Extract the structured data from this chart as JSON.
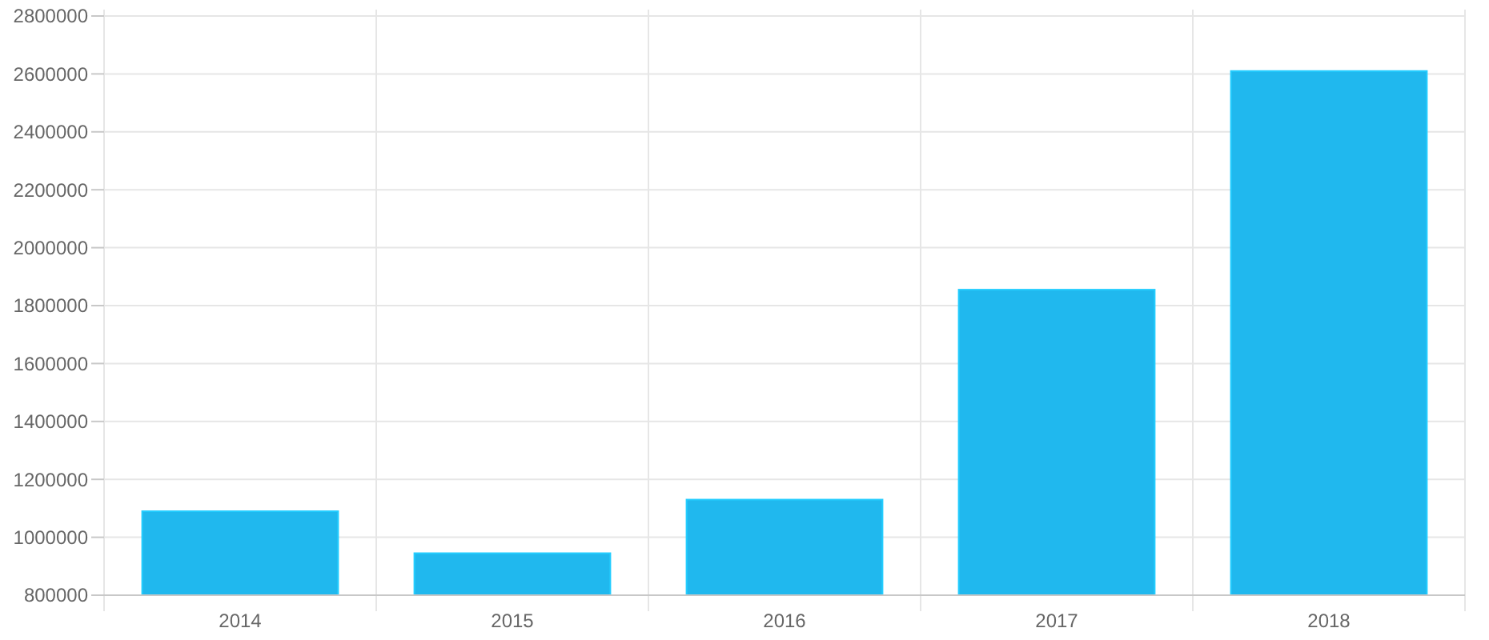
{
  "chart_data": {
    "type": "bar",
    "categories": [
      "2014",
      "2015",
      "2016",
      "2017",
      "2018"
    ],
    "values": [
      1090000,
      945000,
      1130000,
      1855000,
      2610000
    ],
    "color": "#20b8ee",
    "ylim": [
      800000,
      2800000
    ],
    "yticks": [
      800000,
      1000000,
      1200000,
      1400000,
      1600000,
      1800000,
      2000000,
      2200000,
      2400000,
      2600000,
      2800000
    ],
    "grid": true
  }
}
